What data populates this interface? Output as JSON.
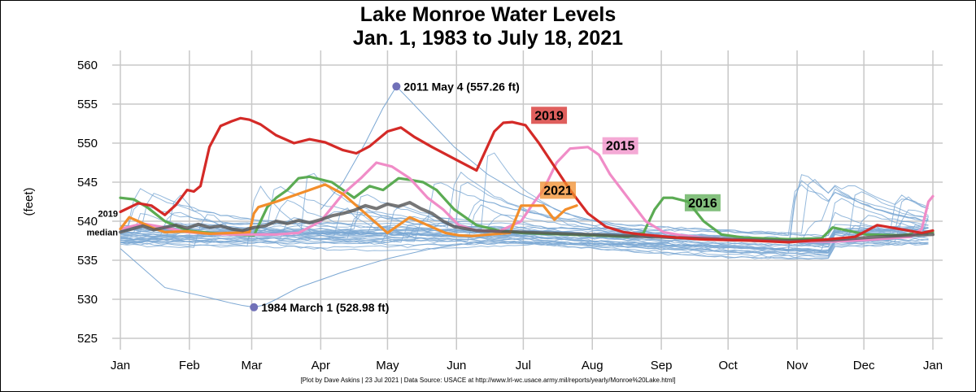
{
  "title": {
    "line1": "Lake Monroe Water Levels",
    "line2": "Jan. 1, 1983 to July 18, 2021"
  },
  "credit": "[Plot by Dave Askins | 23 Jul 2021 | Data Source: USACE at http://www.lrl-wc.usace.army.mil/reports/yearly/Monroe%20Lake.html]",
  "colors": {
    "background_years": "#7ba7d3",
    "2019": "#d42a27",
    "2015": "#f08cc7",
    "2021": "#f28e2b",
    "2016": "#5bab53",
    "median": "#555555",
    "point": "#7070b8"
  },
  "chart_data": {
    "type": "line",
    "x_unit": "day of year",
    "ylabel": "(feet)",
    "ylim": [
      525,
      560
    ],
    "y_ticks": [
      525,
      530,
      535,
      540,
      545,
      550,
      555,
      560
    ],
    "x_ticks": [
      {
        "label": "Jan",
        "day": 0
      },
      {
        "label": "Feb",
        "day": 31
      },
      {
        "label": "Mar",
        "day": 59
      },
      {
        "label": "Apr",
        "day": 90
      },
      {
        "label": "May",
        "day": 120
      },
      {
        "label": "Jun",
        "day": 151
      },
      {
        "label": "Jul",
        "day": 181
      },
      {
        "label": "Aug",
        "day": 212
      },
      {
        "label": "Sep",
        "day": 243
      },
      {
        "label": "Oct",
        "day": 273
      },
      {
        "label": "Nov",
        "day": 304
      },
      {
        "label": "Dec",
        "day": 334
      },
      {
        "label": "Jan",
        "day": 365
      }
    ],
    "grid": true,
    "side_labels": [
      {
        "text": "2019",
        "y": 541.0
      },
      {
        "text": "median",
        "y": 538.6
      }
    ],
    "annotations": [
      {
        "text": "2011 May 4 (557.26 ft)",
        "day": 124,
        "y": 557.26
      },
      {
        "text": "1984 March 1 (528.98 ft)",
        "day": 60,
        "y": 528.98
      }
    ],
    "highlight_series": [
      {
        "name": "2019",
        "color_key": "2019",
        "label_at": {
          "day": 186,
          "y": 553.2
        },
        "x": [
          0,
          8,
          14,
          20,
          25,
          30,
          33,
          36,
          40,
          45,
          50,
          54,
          58,
          63,
          70,
          78,
          85,
          92,
          100,
          106,
          112,
          120,
          126,
          132,
          140,
          150,
          160,
          168,
          172,
          176,
          182,
          188,
          195,
          202,
          210,
          218,
          226,
          234,
          242,
          250,
          260,
          270,
          285,
          300,
          315,
          330,
          340,
          350,
          360,
          365
        ],
        "y": [
          541.2,
          542.3,
          542.0,
          540.8,
          542.1,
          544.0,
          543.8,
          544.5,
          549.5,
          552.2,
          552.8,
          553.2,
          553.0,
          552.4,
          551.0,
          550.0,
          550.5,
          550.1,
          549.1,
          548.7,
          549.6,
          551.5,
          552.0,
          550.8,
          549.5,
          548.0,
          546.5,
          551.5,
          552.6,
          552.7,
          552.3,
          550.0,
          547.0,
          544.0,
          541.0,
          539.3,
          538.6,
          538.3,
          538.1,
          537.9,
          537.7,
          537.6,
          537.5,
          537.3,
          537.6,
          538.0,
          539.5,
          539.0,
          538.5,
          538.8
        ]
      },
      {
        "name": "2015",
        "color_key": "2015",
        "label_at": {
          "day": 218,
          "y": 549.3
        },
        "x": [
          0,
          10,
          20,
          30,
          40,
          50,
          60,
          70,
          80,
          90,
          100,
          108,
          115,
          122,
          130,
          138,
          145,
          152,
          160,
          170,
          180,
          186,
          190,
          196,
          202,
          210,
          215,
          220,
          228,
          236,
          244,
          252,
          262,
          275,
          290,
          305,
          320,
          335,
          345,
          355,
          360,
          363,
          365
        ],
        "y": [
          539.0,
          539.7,
          539.2,
          538.6,
          538.4,
          538.3,
          538.3,
          538.3,
          538.5,
          540.0,
          543.5,
          545.5,
          547.5,
          547.0,
          545.5,
          543.0,
          541.5,
          539.5,
          538.8,
          538.7,
          540.0,
          542.5,
          544.0,
          547.5,
          549.3,
          549.5,
          548.5,
          546.0,
          543.0,
          540.0,
          538.6,
          538.2,
          537.9,
          537.7,
          537.5,
          537.4,
          537.4,
          537.6,
          537.8,
          538.0,
          539.0,
          542.5,
          543.2
        ]
      },
      {
        "name": "2021",
        "color_key": "2021",
        "label_at": {
          "day": 190,
          "y": 543.6
        },
        "x": [
          0,
          4,
          8,
          14,
          20,
          30,
          40,
          50,
          58,
          60,
          62,
          70,
          78,
          85,
          92,
          100,
          110,
          120,
          130,
          138,
          146,
          152,
          158,
          166,
          175,
          180,
          183,
          190,
          195,
          200,
          205
        ],
        "y": [
          539.0,
          540.5,
          540.0,
          539.2,
          538.6,
          538.7,
          538.4,
          538.5,
          538.6,
          541.0,
          541.8,
          542.5,
          543.3,
          544.0,
          544.7,
          543.5,
          541.0,
          538.5,
          540.5,
          539.5,
          538.5,
          538.2,
          538.1,
          538.3,
          538.5,
          542.0,
          542.0,
          542.0,
          540.2,
          541.5,
          542.0
        ]
      },
      {
        "name": "2016",
        "color_key": "2016",
        "label_at": {
          "day": 255,
          "y": 542.0
        },
        "x": [
          0,
          6,
          12,
          20,
          30,
          40,
          50,
          60,
          66,
          70,
          75,
          80,
          85,
          95,
          105,
          112,
          118,
          125,
          130,
          136,
          142,
          150,
          160,
          170,
          180,
          190,
          200,
          210,
          220,
          228,
          235,
          240,
          244,
          248,
          255,
          262,
          270,
          280,
          300,
          315,
          320,
          335,
          350,
          365
        ],
        "y": [
          543.0,
          542.8,
          541.8,
          540.0,
          538.8,
          538.5,
          538.3,
          538.2,
          541.8,
          543.0,
          544.0,
          545.5,
          545.7,
          545.0,
          543.0,
          544.5,
          544.0,
          545.5,
          545.3,
          545.0,
          544.0,
          541.5,
          539.5,
          538.8,
          538.5,
          538.4,
          538.3,
          538.2,
          538.1,
          538.0,
          538.5,
          541.5,
          543.0,
          543.0,
          542.5,
          540.0,
          538.3,
          537.9,
          537.7,
          537.8,
          539.2,
          538.3,
          538.2,
          538.6
        ]
      },
      {
        "name": "median",
        "color_key": "median",
        "label_at": null,
        "x": [
          0,
          5,
          10,
          15,
          20,
          25,
          30,
          35,
          40,
          45,
          50,
          55,
          60,
          65,
          70,
          75,
          80,
          85,
          90,
          95,
          100,
          105,
          110,
          115,
          120,
          125,
          130,
          135,
          140,
          145,
          150,
          160,
          170,
          180,
          200,
          220,
          240,
          260,
          280,
          300,
          320,
          340,
          355,
          365
        ],
        "y": [
          538.6,
          539.0,
          539.4,
          538.9,
          539.2,
          539.5,
          539.1,
          539.6,
          539.2,
          539.4,
          539.0,
          538.8,
          539.2,
          539.4,
          540.0,
          539.7,
          540.1,
          539.8,
          540.2,
          540.7,
          541.0,
          541.4,
          542.0,
          541.6,
          542.2,
          541.9,
          542.4,
          541.6,
          541.0,
          540.0,
          539.3,
          538.8,
          538.7,
          538.6,
          538.4,
          538.2,
          538.0,
          537.8,
          537.6,
          537.5,
          537.6,
          538.0,
          538.2,
          538.3
        ]
      }
    ],
    "background_series_count": 36,
    "points": [
      {
        "label": "2011 May 4 (557.26 ft)",
        "day": 124,
        "y": 557.26
      },
      {
        "label": "1984 March 1 (528.98 ft)",
        "day": 60,
        "y": 528.98
      }
    ]
  }
}
